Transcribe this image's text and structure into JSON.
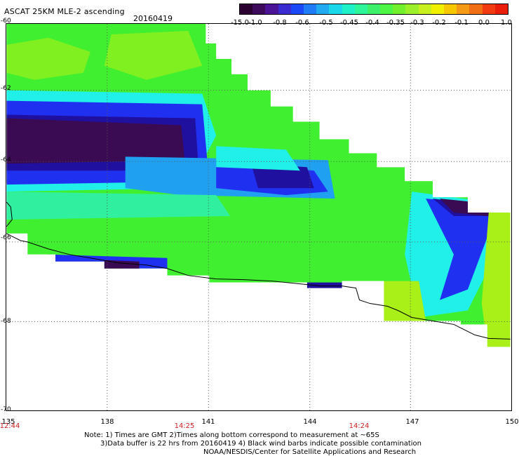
{
  "header": {
    "title": "ASCAT 25KM MLE-2 ascending",
    "date": "20160419"
  },
  "colorbar": {
    "labels": [
      "-15.0",
      "-1.0",
      "-0.8",
      "-0.6",
      "-0.5",
      "-0.45",
      "-0.4",
      "-0.35",
      "-0.3",
      "-0.2",
      "-0.1",
      "0.0",
      "1.0"
    ],
    "colors": [
      "#2a0030",
      "#3d0a5c",
      "#4b1496",
      "#3a2cd0",
      "#1b48f5",
      "#1f7cf5",
      "#22aaf0",
      "#1ad8e8",
      "#1ef0c8",
      "#2cf59a",
      "#3cf06a",
      "#4df545",
      "#72f02e",
      "#9cf02a",
      "#c8f01e",
      "#f0f000",
      "#f5c800",
      "#f59a14",
      "#f06e14",
      "#f03c10",
      "#e81e0a"
    ]
  },
  "map": {
    "lat_labels": [
      "-60",
      "-62",
      "-64",
      "-66",
      "-68",
      "-70"
    ],
    "lon_labels": [
      "135",
      "138",
      "141",
      "144",
      "147",
      "150"
    ],
    "time_labels": [
      "12:44",
      "14:25",
      "14:24"
    ],
    "colors": {
      "deep": "#3a0a52",
      "navy": "#2010a0",
      "blue": "#2030f0",
      "lightblue": "#20a0f0",
      "cyan": "#20f0e8",
      "mint": "#30f0a0",
      "green": "#40f030",
      "lightgreen": "#80f020",
      "yellowgreen": "#a8f018"
    }
  },
  "notes": {
    "line1": "Note: 1) Times are GMT 2)Times along bottom correspond to measurement at ~65S",
    "line2": "3)Data buffer is 22 hrs from 20160419 4) Black wind barbs indicate possible contamination",
    "line3": "NOAA/NESDIS/Center for Satellite Applications and Research"
  }
}
